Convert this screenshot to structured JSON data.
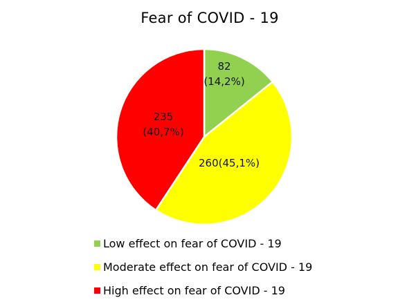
{
  "chart_data": {
    "type": "pie",
    "title": "Fear of COVID - 19",
    "slices": [
      {
        "name": "Low effect on fear of COVID - 19",
        "value": 82,
        "percent_label": "(14,2%)",
        "label": "82\n(14,2%)",
        "color": "#92d050"
      },
      {
        "name": "Moderate effect on fear of COVID - 19",
        "value": 260,
        "percent_label": "(45,1%)",
        "label": "260(45,1%)",
        "color": "#ffff00"
      },
      {
        "name": "High effect on fear of COVID - 19",
        "value": 235,
        "percent_label": "(40,7%)",
        "label": "235\n(40,7%)",
        "color": "#ff0000"
      }
    ],
    "legend_position": "bottom"
  }
}
